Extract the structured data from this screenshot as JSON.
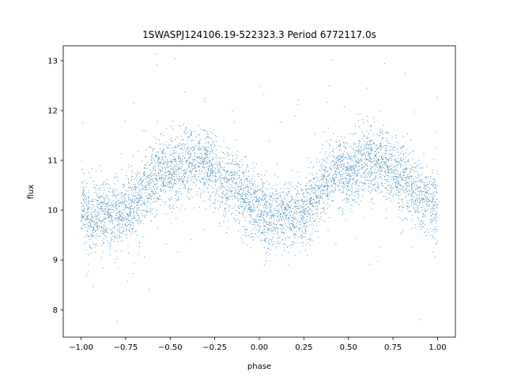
{
  "chart_data": {
    "type": "scatter",
    "title": "1SWASPJ124106.19-522323.3 Period 6772117.0s",
    "xlabel": "phase",
    "ylabel": "flux",
    "xlim": [
      -1.1,
      1.1
    ],
    "ylim": [
      7.45,
      13.3
    ],
    "xticks": [
      -1.0,
      -0.75,
      -0.5,
      -0.25,
      0.0,
      0.25,
      0.5,
      0.75,
      1.0
    ],
    "xtick_labels": [
      "−1.00",
      "−0.75",
      "−0.50",
      "−0.25",
      "0.00",
      "0.25",
      "0.50",
      "0.75",
      "1.00"
    ],
    "yticks": [
      8,
      9,
      10,
      11,
      12,
      13
    ],
    "ytick_labels": [
      "8",
      "9",
      "10",
      "11",
      "12",
      "13"
    ],
    "grid": false,
    "marker_color": "#1f77b4",
    "series": [
      {
        "x_range": [
          -1.0,
          1.0
        ],
        "profile_phase": [
          0.0,
          0.05,
          0.1,
          0.15,
          0.2,
          0.25,
          0.3,
          0.35,
          0.4,
          0.45,
          0.5,
          0.55,
          0.6,
          0.65,
          0.7,
          0.75,
          0.8,
          0.85,
          0.9,
          0.95,
          1.0
        ],
        "profile_flux": [
          10.05,
          9.85,
          9.9,
          9.95,
          9.9,
          9.95,
          10.15,
          10.45,
          10.65,
          10.8,
          10.75,
          10.85,
          10.95,
          11.0,
          10.95,
          10.75,
          10.6,
          10.5,
          10.3,
          10.2,
          10.05
        ],
        "scatter_sd": 0.35
      }
    ]
  }
}
